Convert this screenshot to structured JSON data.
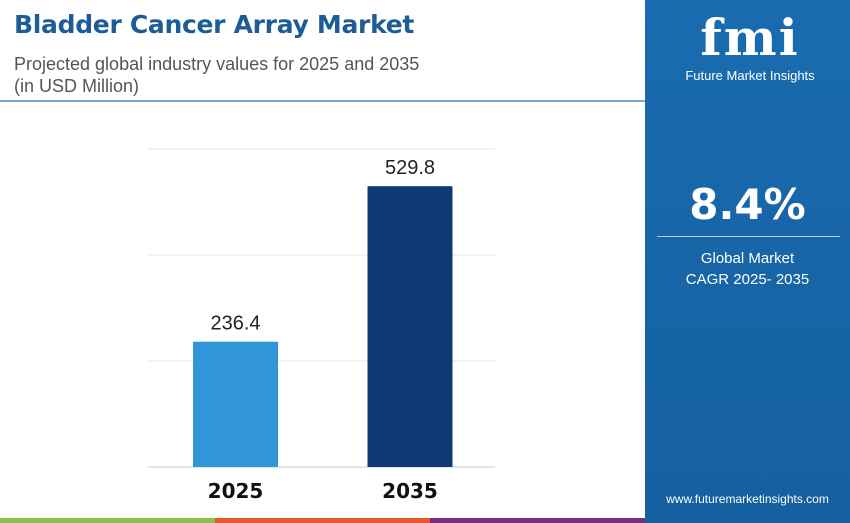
{
  "header": {
    "title": "Bladder Cancer Array Market",
    "subtitle": "Projected global industry values for 2025 and 2035",
    "unit_note": "(in USD Million)"
  },
  "panel": {
    "logo_mark": "fmi",
    "logo_name": "Future Market Insights",
    "cagr_value": "8.4%",
    "cagr_label_line1": "Global Market",
    "cagr_label_line2": "CAGR 2025- 2035",
    "website": "www.futuremarketinsights.com"
  },
  "colors": {
    "title": "#1c5c97",
    "panel": "#1a6bb0",
    "bar_2025": "#3096d8",
    "bar_2035": "#0d3a73",
    "stripe_green": "#8bc34a",
    "stripe_orange": "#e8572a",
    "stripe_purple": "#7b2a8a"
  },
  "chart_data": {
    "type": "bar",
    "categories": [
      "2025",
      "2035"
    ],
    "values": [
      236.4,
      529.8
    ],
    "data_labels": [
      "236.4",
      "529.8"
    ],
    "ylim": [
      0,
      600
    ],
    "grid": true,
    "title": "",
    "xlabel": "",
    "ylabel": ""
  }
}
